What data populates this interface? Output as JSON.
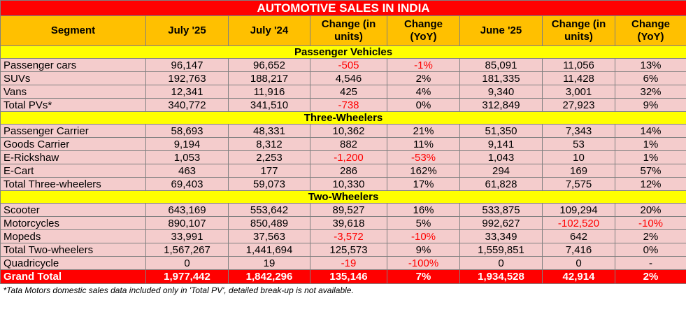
{
  "title": "AUTOMOTIVE SALES IN INDIA",
  "headers": [
    "Segment",
    "July '25",
    "July '24",
    "Change (in units)",
    "Change (YoY)",
    "June '25",
    "Change (in units)",
    "Change (YoY)"
  ],
  "sections": [
    {
      "name": "Passenger Vehicles",
      "rows": [
        {
          "cells": [
            "Passenger cars",
            "96,147",
            "96,652",
            "-505",
            "-1%",
            "85,091",
            "11,056",
            "13%"
          ]
        },
        {
          "cells": [
            "SUVs",
            "192,763",
            "188,217",
            "4,546",
            "2%",
            "181,335",
            "11,428",
            "6%"
          ]
        },
        {
          "cells": [
            "Vans",
            "12,341",
            "11,916",
            "425",
            "4%",
            "9,340",
            "3,001",
            "32%"
          ]
        },
        {
          "cells": [
            "Total PVs*",
            "340,772",
            "341,510",
            "-738",
            "0%",
            "312,849",
            "27,923",
            "9%"
          ]
        }
      ]
    },
    {
      "name": "Three-Wheelers",
      "rows": [
        {
          "cells": [
            "Passenger Carrier",
            "58,693",
            "48,331",
            "10,362",
            "21%",
            "51,350",
            "7,343",
            "14%"
          ]
        },
        {
          "cells": [
            "Goods Carrier",
            "9,194",
            "8,312",
            "882",
            "11%",
            "9,141",
            "53",
            "1%"
          ]
        },
        {
          "cells": [
            "E-Rickshaw",
            "1,053",
            "2,253",
            "-1,200",
            "-53%",
            "1,043",
            "10",
            "1%"
          ]
        },
        {
          "cells": [
            "E-Cart",
            "463",
            "177",
            "286",
            "162%",
            "294",
            "169",
            "57%"
          ]
        },
        {
          "cells": [
            "Total Three-wheelers",
            "69,403",
            "59,073",
            "10,330",
            "17%",
            "61,828",
            "7,575",
            "12%"
          ]
        }
      ]
    },
    {
      "name": "Two-Wheelers",
      "rows": [
        {
          "cells": [
            "Scooter",
            "643,169",
            "553,642",
            "89,527",
            "16%",
            "533,875",
            "109,294",
            "20%"
          ]
        },
        {
          "cells": [
            "Motorcycles",
            "890,107",
            "850,489",
            "39,618",
            "5%",
            "992,627",
            "-102,520",
            "-10%"
          ]
        },
        {
          "cells": [
            "Mopeds",
            "33,991",
            "37,563",
            "-3,572",
            "-10%",
            "33,349",
            "642",
            "2%"
          ]
        },
        {
          "cells": [
            "Total Two-wheelers",
            "1,567,267",
            "1,441,694",
            "125,573",
            "9%",
            "1,559,851",
            "7,416",
            "0%"
          ]
        },
        {
          "cells": [
            "Quadricycle",
            "0",
            "19",
            "-19",
            "-100%",
            "0",
            "0",
            "-"
          ]
        }
      ]
    }
  ],
  "grand_total": [
    "Grand Total",
    "1,977,442",
    "1,842,296",
    "135,146",
    "7%",
    "1,934,528",
    "42,914",
    "2%"
  ],
  "footnote": "*Tata Motors domestic sales data included only in 'Total PV', detailed break-up is not available.",
  "colors": {
    "title_bg": "#ff0000",
    "header_bg": "#ffc000",
    "section_bg": "#ffff00",
    "row_bg": "#f4cccc",
    "negative_text": "#ff0000"
  }
}
